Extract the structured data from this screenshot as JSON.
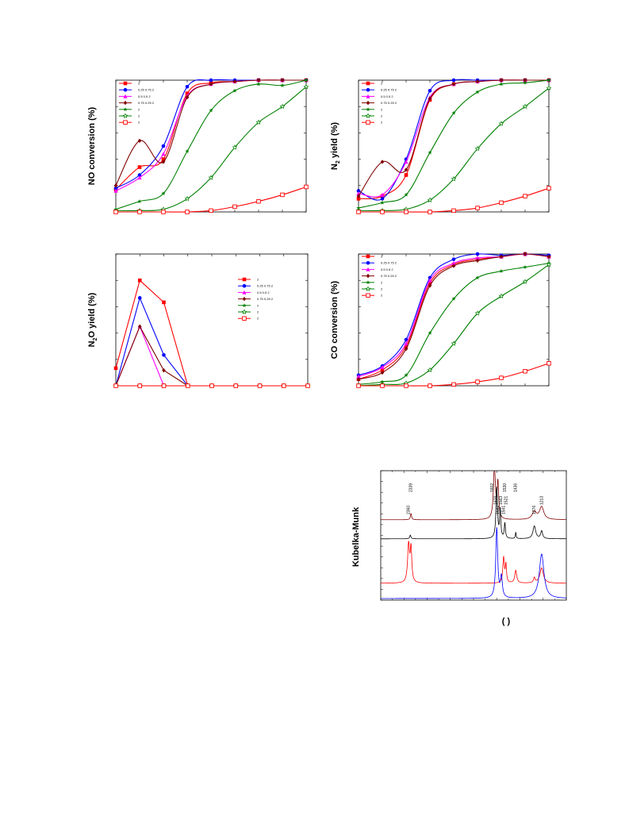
{
  "colors": {
    "red": "#ff0000",
    "blue": "#0000ff",
    "magenta": "#ff00ff",
    "maroon": "#800000",
    "green": "#008000",
    "black": "#000000"
  },
  "chart_data": [
    {
      "id": "no",
      "type": "line",
      "ylabel": "NO conversion (%)",
      "xlim": [
        0,
        8
      ],
      "ylim": [
        0,
        100
      ],
      "series": [
        {
          "color": "red",
          "marker": "square",
          "legend_text": "2",
          "x": [
            0,
            1,
            2,
            3,
            4,
            5,
            6,
            7,
            8
          ],
          "y": [
            17,
            34,
            40,
            90,
            98,
            99,
            100,
            100,
            100
          ]
        },
        {
          "color": "blue",
          "marker": "circle",
          "legend_text": "0.25  0.75  2",
          "x": [
            0,
            1,
            2,
            3,
            4,
            5,
            6,
            7,
            8
          ],
          "y": [
            18,
            28,
            50,
            95,
            100,
            100,
            100,
            100,
            100
          ]
        },
        {
          "color": "magenta",
          "marker": "triangle",
          "legend_text": "0.5   0.5   2",
          "x": [
            0,
            1,
            2,
            3,
            4,
            5,
            6,
            7,
            8
          ],
          "y": [
            16,
            26,
            44,
            88,
            97,
            99,
            100,
            100,
            100
          ]
        },
        {
          "color": "maroon",
          "marker": "diamond",
          "legend_text": "0.75  0.25  2",
          "x": [
            0,
            1,
            2,
            3,
            4,
            5,
            6,
            7,
            8
          ],
          "y": [
            20,
            54,
            38,
            87,
            97,
            99,
            100,
            100,
            100
          ]
        },
        {
          "color": "green",
          "marker": "star",
          "legend_text": "2",
          "x": [
            0,
            1,
            2,
            3,
            4,
            5,
            6,
            7,
            8
          ],
          "y": [
            2,
            8,
            14,
            46,
            77,
            92,
            97,
            96,
            100
          ]
        },
        {
          "color": "green",
          "marker": "star-open",
          "legend_text": "2",
          "x": [
            0,
            1,
            2,
            3,
            4,
            5,
            6,
            7,
            8
          ],
          "y": [
            1,
            1,
            2,
            10,
            26,
            49,
            68,
            80,
            95
          ]
        },
        {
          "color": "red",
          "marker": "square-open",
          "legend_text": "2",
          "x": [
            0,
            1,
            2,
            3,
            4,
            5,
            6,
            7,
            8
          ],
          "y": [
            0,
            0,
            0,
            0,
            1,
            4,
            8,
            13,
            19
          ]
        }
      ]
    },
    {
      "id": "n2",
      "type": "line",
      "ylabel": "N2 yield (%)",
      "xlim": [
        0,
        8
      ],
      "ylim": [
        0,
        100
      ],
      "series": [
        {
          "color": "red",
          "marker": "square",
          "legend_text": "2",
          "x": [
            0,
            1,
            2,
            3,
            4,
            5,
            6,
            7,
            8
          ],
          "y": [
            10,
            12,
            28,
            85,
            97,
            99,
            100,
            100,
            100
          ]
        },
        {
          "color": "blue",
          "marker": "circle",
          "legend_text": "0.25  0.75  2",
          "x": [
            0,
            1,
            2,
            3,
            4,
            5,
            6,
            7,
            8
          ],
          "y": [
            16,
            10,
            40,
            92,
            100,
            100,
            100,
            100,
            100
          ]
        },
        {
          "color": "magenta",
          "marker": "triangle",
          "legend_text": "0.5   0.5   2",
          "x": [
            0,
            1,
            2,
            3,
            4,
            5,
            6,
            7,
            8
          ],
          "y": [
            14,
            13,
            38,
            87,
            97,
            99,
            100,
            100,
            100
          ]
        },
        {
          "color": "maroon",
          "marker": "diamond",
          "legend_text": "0.75  0.25  2",
          "x": [
            0,
            1,
            2,
            3,
            4,
            5,
            6,
            7,
            8
          ],
          "y": [
            12,
            38,
            32,
            86,
            97,
            99,
            100,
            100,
            100
          ]
        },
        {
          "color": "green",
          "marker": "star",
          "legend_text": "2",
          "x": [
            0,
            1,
            2,
            3,
            4,
            5,
            6,
            7,
            8
          ],
          "y": [
            3,
            7,
            13,
            45,
            75,
            91,
            97,
            98,
            100
          ]
        },
        {
          "color": "green",
          "marker": "star-open",
          "legend_text": "2",
          "x": [
            0,
            1,
            2,
            3,
            4,
            5,
            6,
            7,
            8
          ],
          "y": [
            1,
            1,
            2,
            9,
            25,
            48,
            67,
            80,
            94
          ]
        },
        {
          "color": "red",
          "marker": "square-open",
          "legend_text": "2",
          "x": [
            0,
            1,
            2,
            3,
            4,
            5,
            6,
            7,
            8
          ],
          "y": [
            0,
            0,
            0,
            0,
            1,
            3,
            7,
            12,
            18
          ]
        }
      ]
    },
    {
      "id": "n2o",
      "type": "line",
      "ylabel": "N2O yield (%)",
      "xlim": [
        0,
        8
      ],
      "ylim": [
        0,
        30
      ],
      "series": [
        {
          "color": "red",
          "marker": "square",
          "legend_text": "2",
          "x": [
            0,
            1,
            2,
            3,
            4,
            5,
            6,
            7,
            8
          ],
          "y": [
            4,
            24,
            19,
            0,
            0,
            0,
            0,
            0,
            0
          ]
        },
        {
          "color": "blue",
          "marker": "circle",
          "legend_text": "0.25  0.75  2",
          "x": [
            0,
            1,
            2,
            3,
            4,
            5,
            6,
            7,
            8
          ],
          "y": [
            0,
            20,
            7,
            0,
            0,
            0,
            0,
            0,
            0
          ]
        },
        {
          "color": "magenta",
          "marker": "triangle",
          "legend_text": "0.5   0.5   2",
          "x": [
            0,
            1,
            2
          ],
          "y": [
            0,
            13.5,
            0
          ]
        },
        {
          "color": "maroon",
          "marker": "diamond",
          "legend_text": "0.75  0.25  2",
          "x": [
            0,
            1,
            2,
            3
          ],
          "y": [
            0,
            13.5,
            3.5,
            0
          ]
        },
        {
          "color": "green",
          "marker": "star",
          "legend_text": "2",
          "x": [
            0,
            1,
            2,
            3,
            4,
            5,
            6,
            7,
            8
          ],
          "y": [
            0,
            0,
            0,
            0,
            0,
            0,
            0,
            0,
            0
          ]
        },
        {
          "color": "green",
          "marker": "star-open",
          "legend_text": "2",
          "x": [
            0,
            1,
            2,
            3,
            4,
            5,
            6,
            7,
            8
          ],
          "y": [
            0,
            0,
            0,
            0,
            0,
            0,
            0,
            0,
            0
          ]
        },
        {
          "color": "red",
          "marker": "square-open",
          "legend_text": "2",
          "x": [
            0,
            1,
            2,
            3,
            4,
            5,
            6,
            7,
            8
          ],
          "y": [
            0,
            0,
            0,
            0,
            0,
            0,
            0,
            0,
            0
          ]
        }
      ]
    },
    {
      "id": "co",
      "type": "line",
      "ylabel": "CO conversion (%)",
      "xlim": [
        0,
        8
      ],
      "ylim": [
        0,
        100
      ],
      "series": [
        {
          "color": "red",
          "marker": "square",
          "legend_text": "2",
          "x": [
            0,
            1,
            2,
            3,
            4,
            5,
            6,
            7,
            8
          ],
          "y": [
            5,
            12,
            30,
            78,
            92,
            96,
            98,
            100,
            98
          ]
        },
        {
          "color": "blue",
          "marker": "circle",
          "legend_text": "0.25  0.75  2",
          "x": [
            0,
            1,
            2,
            3,
            4,
            5,
            6,
            7,
            8
          ],
          "y": [
            8,
            15,
            35,
            82,
            96,
            100,
            99,
            100,
            99
          ]
        },
        {
          "color": "magenta",
          "marker": "triangle",
          "legend_text": "0.5   0.5   2",
          "x": [
            0,
            1,
            2,
            3,
            4,
            5,
            6,
            7,
            8
          ],
          "y": [
            7,
            14,
            32,
            80,
            93,
            97,
            98,
            100,
            98
          ]
        },
        {
          "color": "maroon",
          "marker": "diamond",
          "legend_text": "0.75  0.25  2",
          "x": [
            0,
            1,
            2,
            3,
            4,
            5,
            6,
            7,
            8
          ],
          "y": [
            5,
            10,
            28,
            76,
            91,
            95,
            98,
            100,
            98
          ]
        },
        {
          "color": "green",
          "marker": "star",
          "legend_text": "2",
          "x": [
            0,
            1,
            2,
            3,
            4,
            5,
            6,
            7,
            8
          ],
          "y": [
            1,
            3,
            8,
            40,
            66,
            82,
            87,
            90,
            93
          ]
        },
        {
          "color": "green",
          "marker": "star-open",
          "legend_text": "2",
          "x": [
            0,
            1,
            2,
            3,
            4,
            5,
            6,
            7,
            8
          ],
          "y": [
            0,
            1,
            2,
            12,
            32,
            55,
            68,
            79,
            92
          ]
        },
        {
          "color": "red",
          "marker": "square-open",
          "legend_text": "2",
          "x": [
            0,
            1,
            2,
            3,
            4,
            5,
            6,
            7,
            8
          ],
          "y": [
            0,
            0,
            0,
            0,
            1,
            3,
            6,
            11,
            17
          ]
        }
      ]
    },
    {
      "id": "ftir",
      "type": "line",
      "ylabel": "Kubelka-Munk",
      "xlabel": "(      )",
      "xlim": [
        2600,
        1000
      ],
      "peak_labels": [
        {
          "text": "2339",
          "x": 2339
        },
        {
          "text": "2360",
          "x": 2360
        },
        {
          "text": "1608",
          "x": 1608
        },
        {
          "text": "1602",
          "x": 1640
        },
        {
          "text": "1582",
          "x": 1590
        },
        {
          "text": "1563",
          "x": 1563
        },
        {
          "text": "1530",
          "x": 1530
        },
        {
          "text": "1541",
          "x": 1541
        },
        {
          "text": "1521",
          "x": 1521
        },
        {
          "text": "1436",
          "x": 1436
        },
        {
          "text": "1276",
          "x": 1276
        },
        {
          "text": "1213",
          "x": 1213
        }
      ],
      "series": [
        {
          "color": "maroon",
          "offset": 0.62,
          "peaks": [
            [
              2339,
              0.05,
              6
            ],
            [
              1620,
              0.42,
              10
            ],
            [
              1590,
              0.28,
              8
            ],
            [
              1276,
              0.06,
              22
            ],
            [
              1213,
              0.1,
              22
            ]
          ]
        },
        {
          "color": "black",
          "offset": 0.47,
          "peaks": [
            [
              2345,
              0.03,
              6
            ],
            [
              1600,
              0.4,
              8
            ],
            [
              1570,
              0.22,
              6
            ],
            [
              1530,
              0.12,
              6
            ],
            [
              1436,
              0.05,
              4
            ],
            [
              1276,
              0.1,
              14
            ],
            [
              1213,
              0.06,
              10
            ]
          ]
        },
        {
          "color": "red",
          "offset": 0.12,
          "peaks": [
            [
              2360,
              0.3,
              10
            ],
            [
              2339,
              0.26,
              8
            ],
            [
              1541,
              0.2,
              8
            ],
            [
              1521,
              0.14,
              6
            ],
            [
              1436,
              0.1,
              10
            ],
            [
              1276,
              0.04,
              8
            ],
            [
              1213,
              0.12,
              18
            ]
          ]
        },
        {
          "color": "blue",
          "offset": 0.0,
          "peaks": [
            [
              1600,
              0.55,
              10
            ],
            [
              1560,
              0.16,
              10
            ],
            [
              1213,
              0.35,
              24
            ]
          ]
        }
      ]
    }
  ]
}
